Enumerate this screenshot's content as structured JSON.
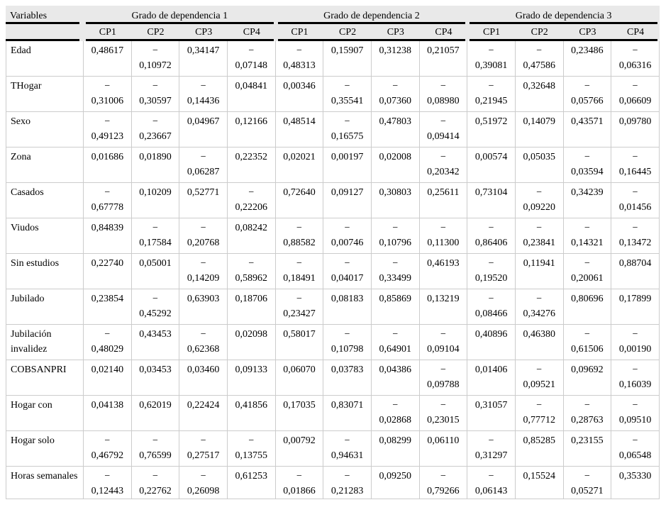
{
  "table": {
    "variables_header": "Variables",
    "groups": [
      "Grado de dependencia 1",
      "Grado de dependencia 2",
      "Grado de dependencia 3"
    ],
    "cp_headers": [
      "CP1",
      "CP2",
      "CP3",
      "CP4"
    ],
    "minus_glyph": "−",
    "rows": [
      {
        "label": "Edad",
        "values": [
          "0,48617",
          "-0,10972",
          "0,34147",
          "-0,07148",
          "-0,48313",
          "0,15907",
          "0,31238",
          "0,21057",
          "-0,39081",
          "-0,47586",
          "0,23486",
          "-0,06316"
        ]
      },
      {
        "label": "THogar",
        "values": [
          "-0,31006",
          "-0,30597",
          "-0,14436",
          "0,04841",
          "0,00346",
          "-0,35541",
          "-0,07360",
          "-0,08980",
          "-0,21945",
          "0,32648",
          "-0,05766",
          "-0,06609"
        ]
      },
      {
        "label": "Sexo",
        "values": [
          "-0,49123",
          "-0,23667",
          "0,04967",
          "0,12166",
          "0,48514",
          "-0,16575",
          "0,47803",
          "-0,09414",
          "0,51972",
          "0,14079",
          "0,43571",
          "0,09780"
        ]
      },
      {
        "label": "Zona",
        "values": [
          "0,01686",
          "0,01890",
          "-0,06287",
          "0,22352",
          "0,02021",
          "0,00197",
          "0,02008",
          "-0,20342",
          "0,00574",
          "0,05035",
          "-0,03594",
          "-0,16445"
        ]
      },
      {
        "label": "Casados",
        "values": [
          "-0,67778",
          "0,10209",
          "0,52771",
          "-0,22206",
          "0,72640",
          "0,09127",
          "0,30803",
          "0,25611",
          "0,73104",
          "-0,09220",
          "0,34239",
          "-0,01456"
        ]
      },
      {
        "label": "Viudos",
        "values": [
          "0,84839",
          "-0,17584",
          "-0,20768",
          "0,08242",
          "-0,88582",
          "-0,00746",
          "-0,10796",
          "-0,11300",
          "-0,86406",
          "-0,23841",
          "-0,14321",
          "-0,13472"
        ]
      },
      {
        "label": "Sin estudios",
        "values": [
          "0,22740",
          "0,05001",
          "-0,14209",
          "-0,58962",
          "-0,18491",
          "-0,04017",
          "-0,33499",
          "0,46193",
          "-0,19520",
          "0,11941",
          "-0,20061",
          "0,88704"
        ]
      },
      {
        "label": "Jubilado",
        "values": [
          "0,23854",
          "-0,45292",
          "0,63903",
          "0,18706",
          "-0,23427",
          "0,08183",
          "0,85869",
          "0,13219",
          "-0,08466",
          "-0,34276",
          "0,80696",
          "0,17899"
        ]
      },
      {
        "label": "Jubilación invalidez",
        "values": [
          "-0,48029",
          "0,43453",
          "-0,62368",
          "0,02098",
          "0,58017",
          "-0,10798",
          "-0,64901",
          "-0,09104",
          "0,40896",
          "0,46380",
          "-0,61506",
          "-0,00190"
        ]
      },
      {
        "label": "COBSANPRI",
        "values": [
          "0,02140",
          "0,03453",
          "0,03460",
          "0,09133",
          "0,06070",
          "0,03783",
          "0,04386",
          "-0,09788",
          "0,01406",
          "-0,09521",
          "0,09692",
          "-0,16039"
        ]
      },
      {
        "label": "Hogar con",
        "values": [
          "0,04138",
          "0,62019",
          "0,22424",
          "0,41856",
          "0,17035",
          "0,83071",
          "-0,02868",
          "-0,23015",
          "0,31057",
          "-0,77712",
          "-0,28763",
          "-0,09510"
        ]
      },
      {
        "label": "Hogar solo",
        "values": [
          "-0,46792",
          "-0,76599",
          "-0,27517",
          "-0,13755",
          "0,00792",
          "-0,94631",
          "0,08299",
          "0,06110",
          "-0,31297",
          "0,85285",
          "0,23155",
          "-0,06548"
        ]
      },
      {
        "label": "Horas semanales",
        "values": [
          "-0,12443",
          "-0,22762",
          "-0,26098",
          "0,61253",
          "-0,01866",
          "-0,21283",
          "0,09250",
          "-0,79266",
          "-0,06143",
          "0,15524",
          "-0,05271",
          "0,35330"
        ]
      }
    ]
  },
  "colors": {
    "header_bg": "#e9e9e9",
    "grid_line": "#cccccc",
    "rule": "#000000",
    "text": "#000000"
  }
}
